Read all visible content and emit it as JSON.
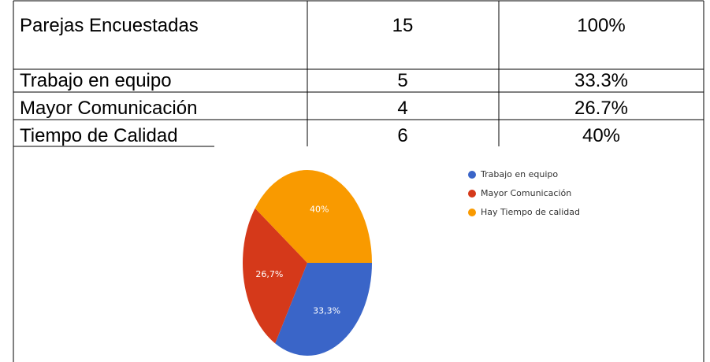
{
  "table": {
    "rows": [
      [
        "Parejas Encuestadas",
        "15",
        "100%"
      ],
      [
        "Trabajo en equipo",
        "5",
        "33.3%"
      ],
      [
        "Mayor Comunicación",
        "4",
        "26.7%"
      ],
      [
        "Tiempo de Calidad",
        "6",
        "40%"
      ]
    ]
  },
  "chart_data": {
    "type": "pie",
    "categories": [
      "Trabajo en equipo",
      "Mayor Comunicación",
      "Hay Tiempo de calidad"
    ],
    "values": [
      33.3,
      26.7,
      40
    ],
    "value_labels": [
      "33,3%",
      "26,7%",
      "40%"
    ],
    "colors": [
      "#3a65c8",
      "#d5391a",
      "#f99a00"
    ],
    "legend": "right"
  }
}
